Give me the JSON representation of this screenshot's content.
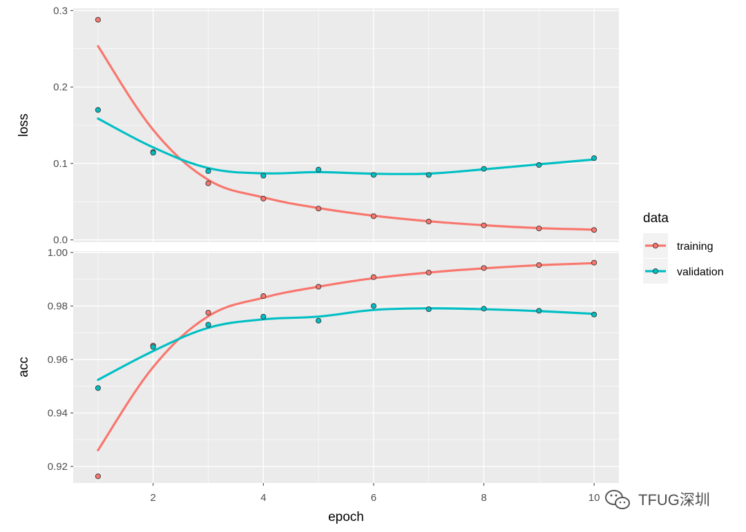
{
  "chart_data": {
    "type": "line",
    "xlabel": "epoch",
    "x": [
      1,
      2,
      3,
      4,
      5,
      6,
      7,
      8,
      9,
      10
    ],
    "x_ticks": [
      2,
      4,
      6,
      8,
      10
    ],
    "xlim": [
      0.55,
      10.45
    ],
    "grid": true,
    "legend": {
      "title": "data",
      "placement": "right",
      "entries": [
        {
          "label": "training",
          "color": "#F8766D"
        },
        {
          "label": "validation",
          "color": "#00BFC4"
        }
      ]
    },
    "panels": [
      {
        "ylabel": "loss",
        "ylim": [
          -0.003,
          0.303
        ],
        "y_ticks": [
          0.0,
          0.1,
          0.2,
          0.3
        ],
        "y_tick_labels": [
          "0.0",
          "0.1",
          "0.2",
          "0.3"
        ],
        "series": [
          {
            "name": "training",
            "values": [
              0.288,
              0.115,
              0.074,
              0.054,
              0.041,
              0.031,
              0.024,
              0.019,
              0.015,
              0.013
            ]
          },
          {
            "name": "validation",
            "values": [
              0.17,
              0.114,
              0.09,
              0.084,
              0.092,
              0.085,
              0.085,
              0.093,
              0.098,
              0.107
            ]
          }
        ]
      },
      {
        "ylabel": "acc",
        "ylim": [
          0.9138,
          1.0005
        ],
        "y_ticks": [
          0.92,
          0.94,
          0.96,
          0.98,
          1.0
        ],
        "y_tick_labels": [
          "0.92",
          "0.94",
          "0.96",
          "0.98",
          "1.00"
        ],
        "series": [
          {
            "name": "training",
            "values": [
              0.9163,
              0.9652,
              0.9775,
              0.9837,
              0.9872,
              0.9908,
              0.9925,
              0.9942,
              0.9953,
              0.9962
            ]
          },
          {
            "name": "validation",
            "values": [
              0.9493,
              0.9647,
              0.973,
              0.976,
              0.9745,
              0.98,
              0.9788,
              0.979,
              0.9782,
              0.9768
            ]
          }
        ]
      }
    ]
  },
  "watermark": "TFUG深圳",
  "watermark_icon": "wechat-icon"
}
